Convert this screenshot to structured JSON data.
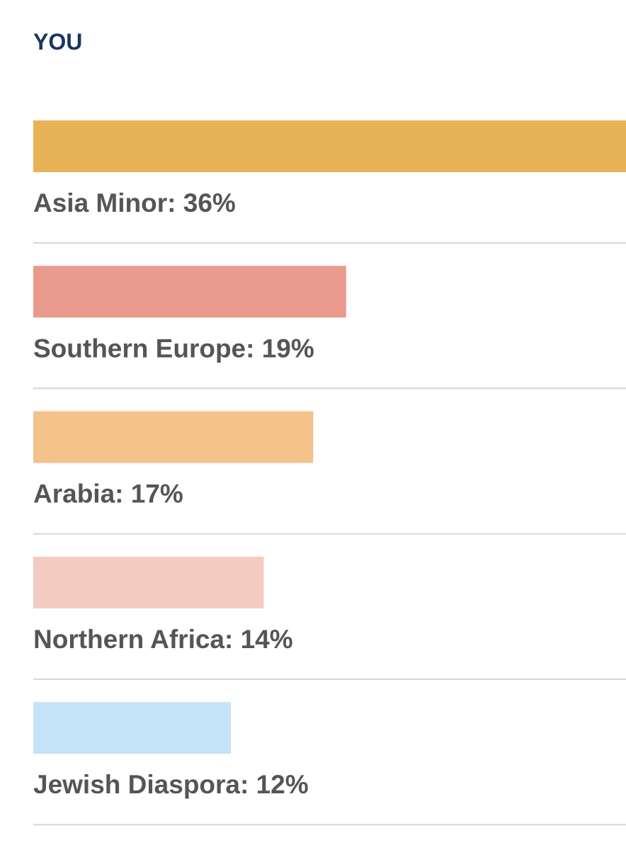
{
  "chart_data": {
    "type": "bar",
    "orientation": "horizontal",
    "title": "YOU",
    "values": [
      36,
      19,
      17,
      14,
      12
    ],
    "value_labels": [
      "Asia Minor: 36%",
      "Southern Europe: 19%",
      "Arabia: 17%",
      "Northern Africa: 14%",
      "Jewish Diaspora: 12%"
    ],
    "colors": [
      "#e8b357",
      "#e99a8c",
      "#f3c18a",
      "#f4cbc0",
      "#c5e3f6"
    ]
  }
}
